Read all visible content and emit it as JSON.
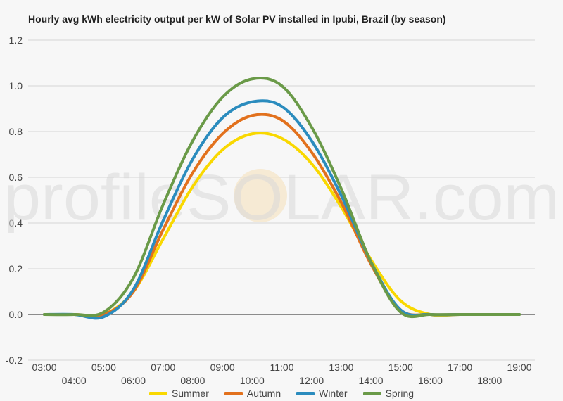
{
  "chart_data": {
    "type": "line",
    "title": "Hourly avg kWh electricity output per kW of Solar PV installed in Ipubi, Brazil (by season)",
    "xlabel": "",
    "ylabel": "",
    "x": [
      "03:00",
      "04:00",
      "05:00",
      "06:00",
      "07:00",
      "08:00",
      "09:00",
      "10:00",
      "11:00",
      "12:00",
      "13:00",
      "14:00",
      "15:00",
      "16:00",
      "17:00",
      "18:00",
      "19:00"
    ],
    "ylim": [
      -0.2,
      1.2
    ],
    "yticks": [
      "1.2",
      "1.0",
      "0.8",
      "0.6",
      "0.4",
      "0.2",
      "0.0",
      "-0.2"
    ],
    "grid": true,
    "legend_position": "bottom",
    "watermark": "profileSOLAR.com",
    "series": [
      {
        "name": "Summer",
        "color": "#f9d800",
        "values": [
          0,
          0,
          0,
          0.1,
          0.33,
          0.56,
          0.72,
          0.79,
          0.77,
          0.66,
          0.47,
          0.24,
          0.06,
          0,
          0,
          0,
          0
        ]
      },
      {
        "name": "Autumn",
        "color": "#e2711d",
        "values": [
          0,
          0,
          0,
          0.1,
          0.37,
          0.62,
          0.79,
          0.87,
          0.85,
          0.71,
          0.49,
          0.22,
          0.02,
          0,
          0,
          0,
          0
        ]
      },
      {
        "name": "Winter",
        "color": "#2b8cbe",
        "values": [
          0,
          0,
          -0.01,
          0.11,
          0.41,
          0.68,
          0.86,
          0.93,
          0.91,
          0.76,
          0.52,
          0.23,
          0.02,
          0,
          0,
          0,
          0
        ]
      },
      {
        "name": "Spring",
        "color": "#6a9a48",
        "values": [
          0,
          0,
          0.01,
          0.16,
          0.48,
          0.76,
          0.95,
          1.03,
          1.0,
          0.82,
          0.55,
          0.23,
          0.01,
          0,
          0,
          0,
          0
        ]
      }
    ]
  }
}
